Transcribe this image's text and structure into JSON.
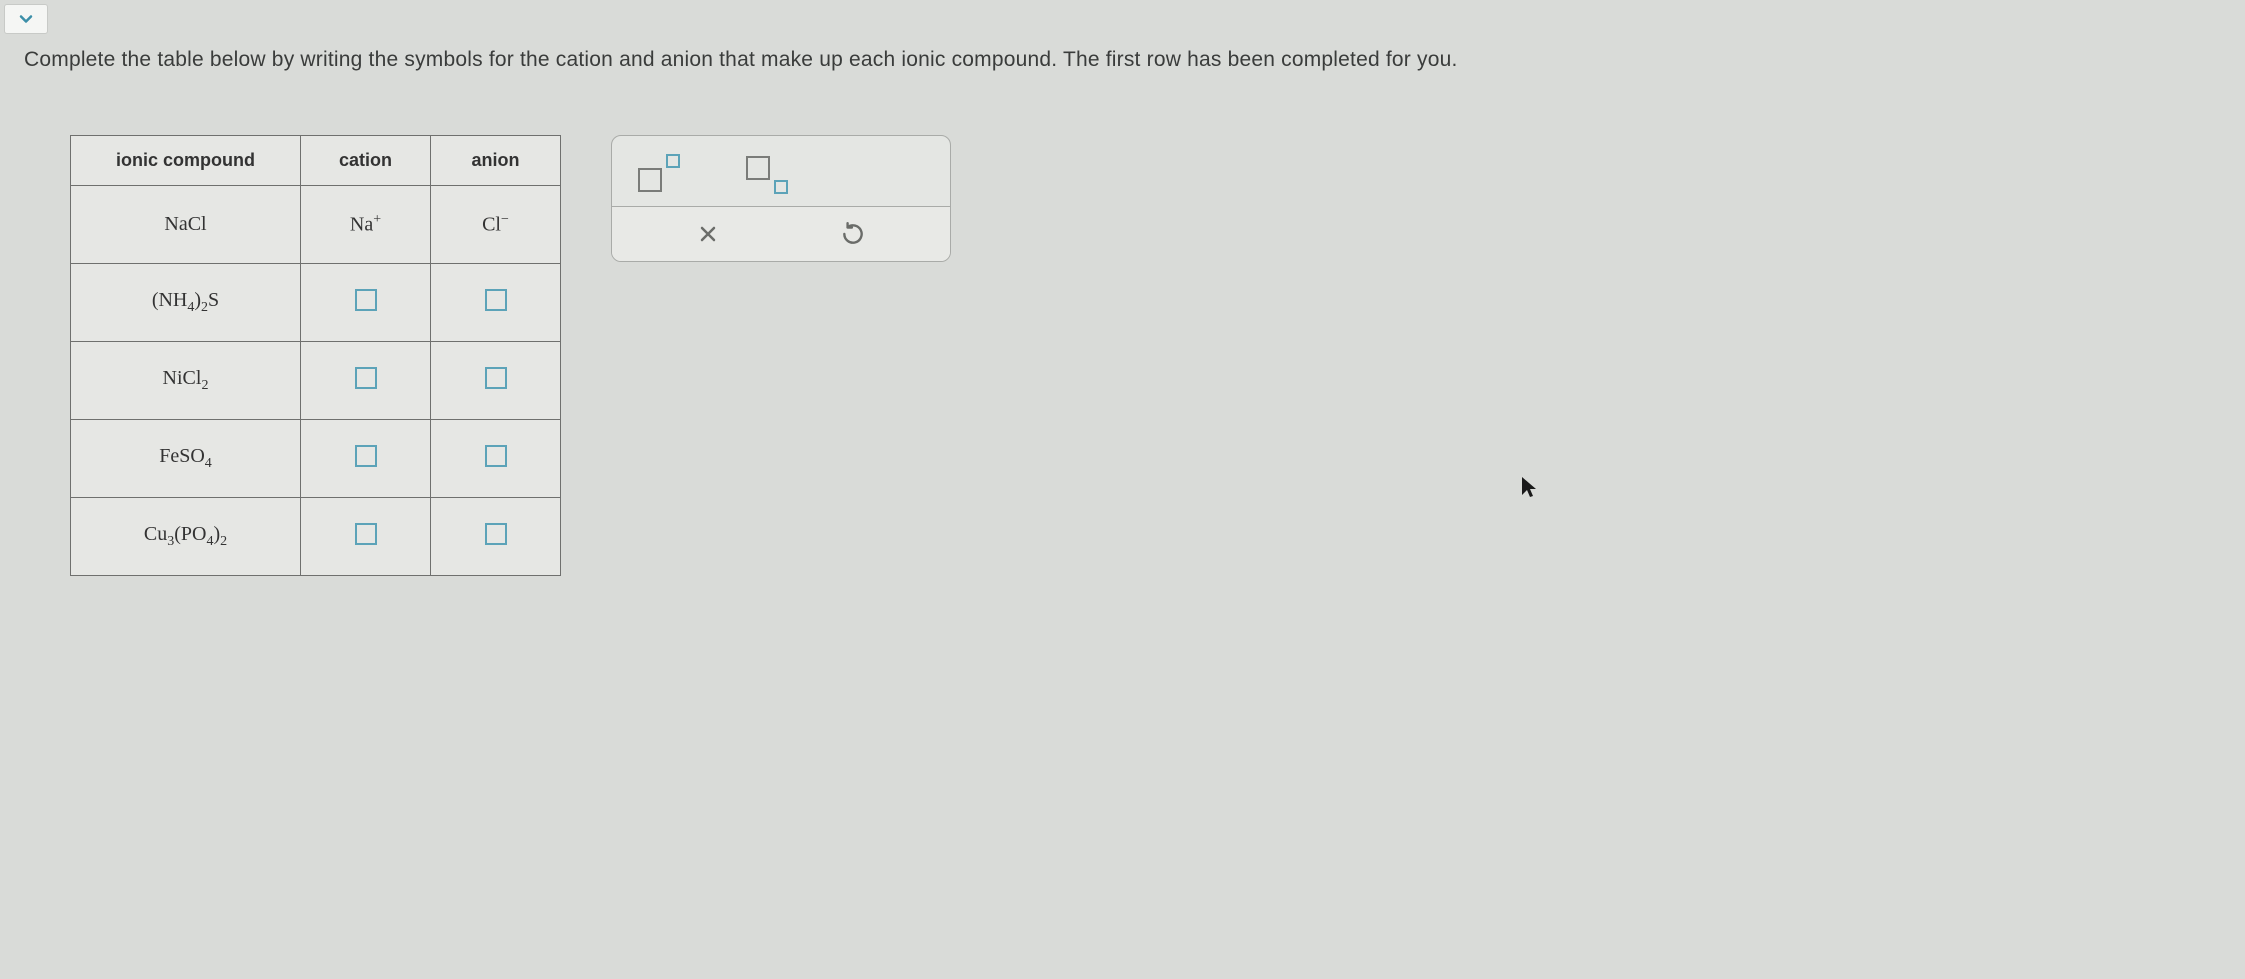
{
  "colors": {
    "page_bg": "#d9dbd8",
    "table_border": "#6f706e",
    "input_border": "#5ca3b8",
    "panel_border": "#a9aba8",
    "text": "#3a3c3b",
    "chevron": "#3c8fa8",
    "tool_gray": "#7a7c79"
  },
  "instruction": "Complete the table below by writing the symbols for the cation and anion that make up each ionic compound. The first row has been completed for you.",
  "table": {
    "headers": {
      "c0": "ionic compound",
      "c1": "cation",
      "c2": "anion"
    },
    "rows": [
      {
        "compound_html": "NaCl",
        "cation_html": "Na<span class=\"sup\">+</span>",
        "anion_html": "Cl<span class=\"sup\">−</span>",
        "filled": true
      },
      {
        "compound_html": "(NH<span class=\"sub\">4</span>)<span class=\"sub\">2</span>S",
        "cation_html": "",
        "anion_html": "",
        "filled": false
      },
      {
        "compound_html": "NiCl<span class=\"sub\">2</span>",
        "cation_html": "",
        "anion_html": "",
        "filled": false
      },
      {
        "compound_html": "FeSO<span class=\"sub\">4</span>",
        "cation_html": "",
        "anion_html": "",
        "filled": false
      },
      {
        "compound_html": "Cu<span class=\"sub\">3</span>(PO<span class=\"sub\">4</span>)<span class=\"sub\">2</span>",
        "cation_html": "",
        "anion_html": "",
        "filled": false
      }
    ]
  },
  "tools": {
    "superscript_label": "superscript",
    "subscript_label": "subscript",
    "clear_label": "clear",
    "reset_label": "reset"
  }
}
